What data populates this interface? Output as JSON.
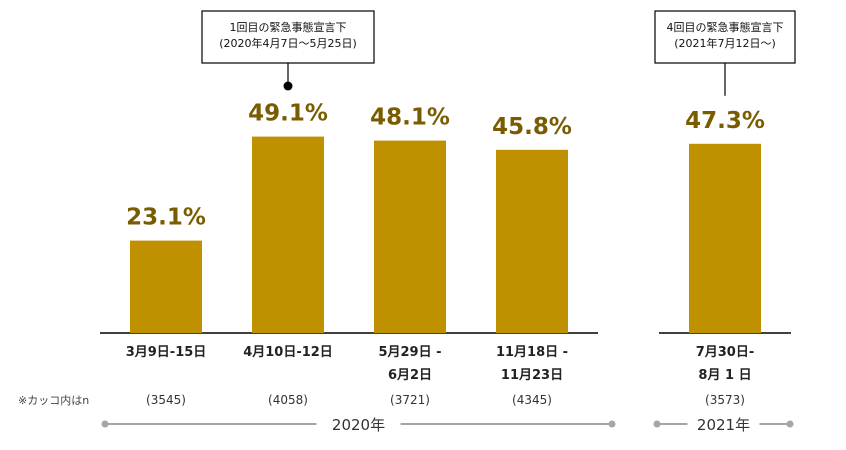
{
  "chart_data": {
    "type": "bar",
    "ylim": [
      0,
      60
    ],
    "bars": [
      {
        "category": [
          "3月9日-15日"
        ],
        "value": 23.1,
        "value_label": "23.1%",
        "n": "(3545)"
      },
      {
        "category": [
          "4月10日-12日"
        ],
        "value": 49.1,
        "value_label": "49.1%",
        "n": "(4058)"
      },
      {
        "category": [
          "5月29日 -",
          "6月2日"
        ],
        "value": 48.1,
        "value_label": "48.1%",
        "n": "(3721)"
      },
      {
        "category": [
          "11月18日 -",
          "11月23日"
        ],
        "value": 45.8,
        "value_label": "45.8%",
        "n": "(4345)"
      },
      {
        "category": [
          "7月30日-",
          "8月 1 日"
        ],
        "value": 47.3,
        "value_label": "47.3%",
        "n": "(3573)"
      }
    ],
    "groups": [
      {
        "label": "2020年",
        "bars": [
          0,
          1,
          2,
          3
        ]
      },
      {
        "label": "2021年",
        "bars": [
          4
        ]
      }
    ],
    "annotations": [
      {
        "bar": 1,
        "lines": [
          "1回目の緊急事態宣言下",
          "(2020年4月7日〜5月25日)"
        ]
      },
      {
        "bar": 4,
        "lines": [
          "4回目の緊急事態宣言下",
          "(2021年7月12日〜)"
        ]
      }
    ],
    "n_note": "※カッコ内はn",
    "bar_color": "#bf9000",
    "value_color": "#7a5c00",
    "axis_color": "#000000",
    "group_line_color": "#a6a6a6"
  }
}
